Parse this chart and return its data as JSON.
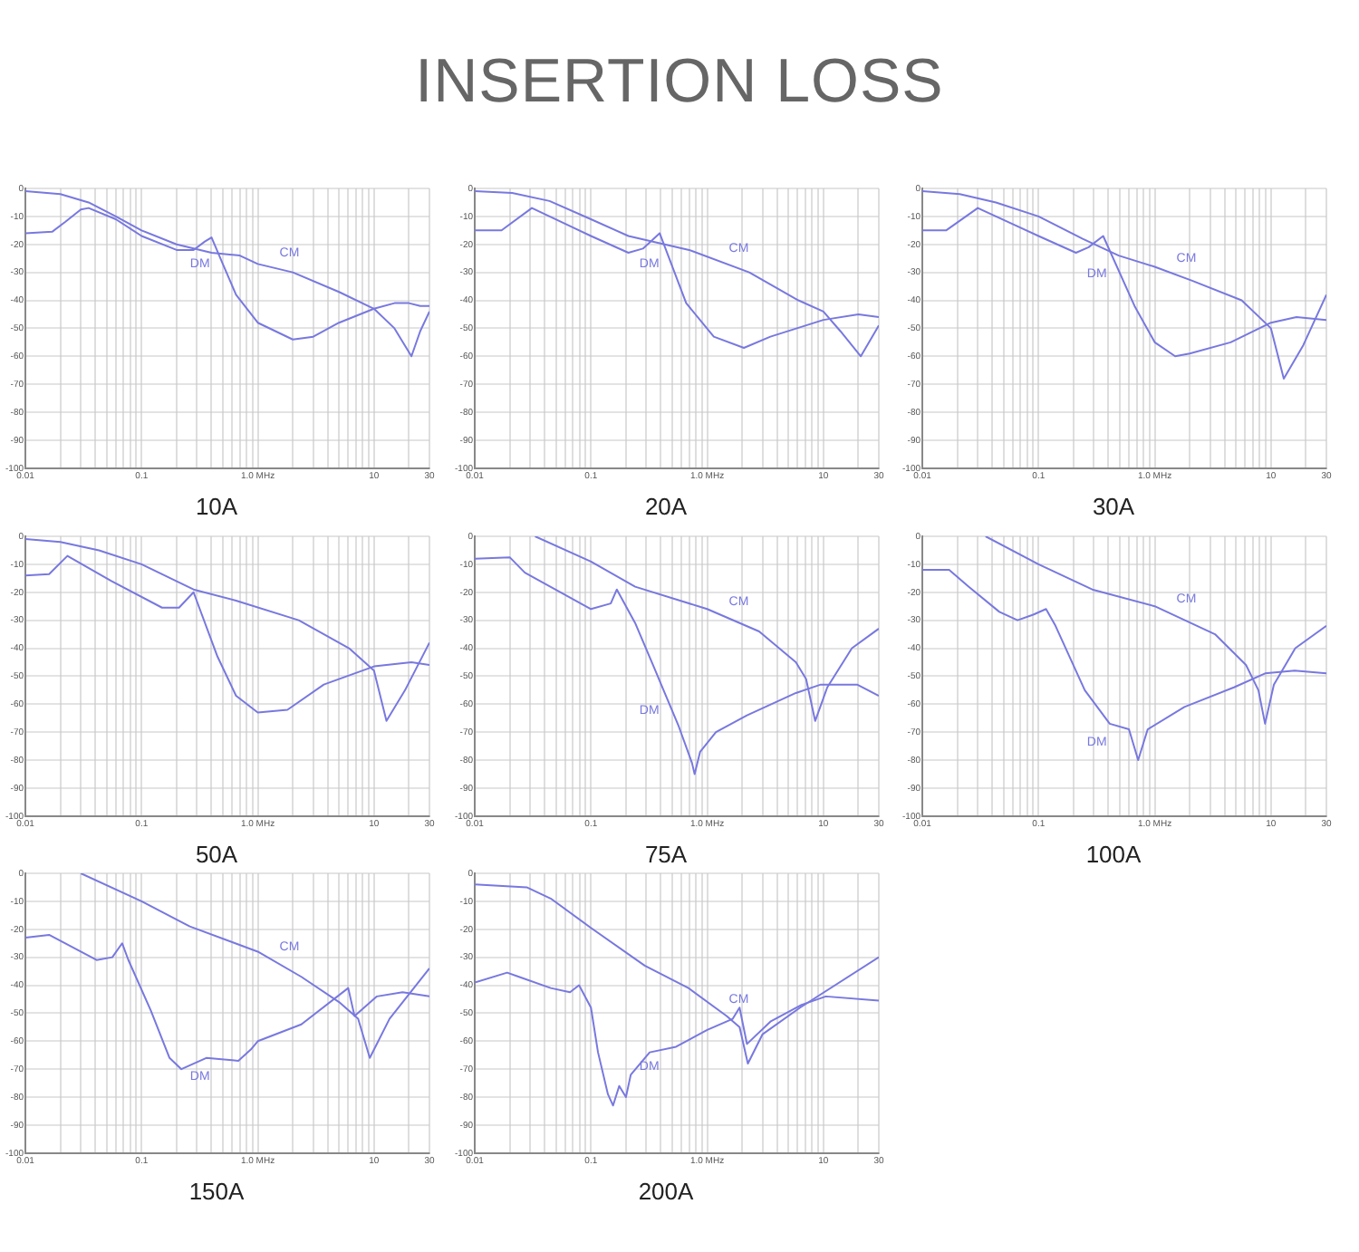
{
  "chart_data": [
    {
      "type": "line",
      "title": "10A",
      "annotations": [
        "INSERTION LOSS"
      ],
      "log": "x",
      "grid": true,
      "xlim": [
        0.01,
        30
      ],
      "ylim": [
        -100,
        0
      ],
      "xticks": [
        0.01,
        {
          "value": 0.02,
          "label": null
        },
        {
          "value": 0.03,
          "label": null
        },
        {
          "value": 0.04,
          "label": null
        },
        {
          "value": 0.05,
          "label": null
        },
        {
          "value": 0.06,
          "label": null
        },
        {
          "value": 0.07,
          "label": null
        },
        {
          "value": 0.08,
          "label": null
        },
        {
          "value": 0.09,
          "label": null
        },
        0.1,
        {
          "value": 0.2,
          "label": null
        },
        {
          "value": 0.3,
          "label": null
        },
        {
          "value": 0.4,
          "label": null
        },
        {
          "value": 0.5,
          "label": null
        },
        {
          "value": 0.6,
          "label": null
        },
        {
          "value": 0.7,
          "label": null
        },
        {
          "value": 0.8,
          "label": null
        },
        {
          "value": 0.9,
          "label": null
        },
        {
          "value": 1,
          "label": "1.0 MHz"
        },
        {
          "value": 2,
          "label": null
        },
        {
          "value": 3,
          "label": null
        },
        {
          "value": 4,
          "label": null
        },
        {
          "value": 5,
          "label": null
        },
        {
          "value": 6,
          "label": null
        },
        {
          "value": 7,
          "label": null
        },
        {
          "value": 8,
          "label": null
        },
        {
          "value": 9,
          "label": null
        },
        10,
        {
          "value": 20,
          "label": null
        },
        30
      ],
      "yticks": [
        -100,
        -90,
        -80,
        -70,
        -60,
        -50,
        -40,
        -30,
        -20,
        -10,
        0
      ],
      "series": [
        {
          "name": "CM",
          "color": "#7878e0",
          "x": [
            0.01,
            0.02,
            0.035,
            0.06,
            0.1,
            0.2,
            0.4,
            0.7,
            1,
            2,
            5,
            10,
            15,
            21,
            25,
            30
          ],
          "values": [
            -1,
            -2,
            -5,
            -10,
            -15,
            -20,
            -23,
            -24,
            -27,
            -30,
            -37,
            -43,
            -50,
            -60,
            -51,
            -44
          ]
        },
        {
          "name": "DM",
          "color": "#7878e0",
          "x": [
            0.01,
            0.017,
            0.022,
            0.03,
            0.035,
            0.06,
            0.1,
            0.2,
            0.28,
            0.35,
            0.4,
            0.5,
            0.65,
            1,
            2,
            3,
            5,
            10,
            15,
            20,
            25,
            30
          ],
          "values": [
            -16,
            -15.5,
            -12,
            -7.5,
            -7,
            -11,
            -17,
            -22,
            -22,
            -19,
            -17.5,
            -27,
            -38,
            -48,
            -54,
            -53,
            -48,
            -43,
            -41,
            -41,
            -42,
            -42
          ]
        }
      ]
    },
    {
      "type": "line",
      "title": "20A",
      "log": "x",
      "grid": true,
      "xlim": [
        0.01,
        30
      ],
      "ylim": [
        -100,
        0
      ],
      "xticks": [
        0.01,
        {
          "value": 0.02,
          "label": null
        },
        {
          "value": 0.03,
          "label": null
        },
        {
          "value": 0.04,
          "label": null
        },
        {
          "value": 0.05,
          "label": null
        },
        {
          "value": 0.06,
          "label": null
        },
        {
          "value": 0.07,
          "label": null
        },
        {
          "value": 0.08,
          "label": null
        },
        {
          "value": 0.09,
          "label": null
        },
        0.1,
        {
          "value": 0.2,
          "label": null
        },
        {
          "value": 0.3,
          "label": null
        },
        {
          "value": 0.4,
          "label": null
        },
        {
          "value": 0.5,
          "label": null
        },
        {
          "value": 0.6,
          "label": null
        },
        {
          "value": 0.7,
          "label": null
        },
        {
          "value": 0.8,
          "label": null
        },
        {
          "value": 0.9,
          "label": null
        },
        {
          "value": 1,
          "label": "1.0 MHz"
        },
        {
          "value": 2,
          "label": null
        },
        {
          "value": 3,
          "label": null
        },
        {
          "value": 4,
          "label": null
        },
        {
          "value": 5,
          "label": null
        },
        {
          "value": 6,
          "label": null
        },
        {
          "value": 7,
          "label": null
        },
        {
          "value": 8,
          "label": null
        },
        {
          "value": 9,
          "label": null
        },
        10,
        {
          "value": 20,
          "label": null
        },
        30
      ],
      "yticks": [
        -100,
        -90,
        -80,
        -70,
        -60,
        -50,
        -40,
        -30,
        -20,
        -10,
        0
      ],
      "series": [
        {
          "name": "CM",
          "color": "#7878e0",
          "x": [
            0.01,
            0.021,
            0.044,
            0.1,
            0.21,
            0.43,
            0.7,
            2.3,
            6.1,
            10,
            14,
            21,
            30
          ],
          "values": [
            -1,
            -1.6,
            -4.5,
            -11,
            -17,
            -20,
            -22,
            -30,
            -40,
            -44,
            -51,
            -60,
            -49
          ]
        },
        {
          "name": "DM",
          "color": "#7878e0",
          "x": [
            0.01,
            0.017,
            0.031,
            0.1,
            0.21,
            0.28,
            0.39,
            0.66,
            1.14,
            2.07,
            3.5,
            10,
            20,
            30
          ],
          "values": [
            -15,
            -15,
            -7,
            -17,
            -23,
            -21.5,
            -16,
            -41,
            -53,
            -57,
            -53,
            -47,
            -45,
            -46
          ]
        }
      ]
    },
    {
      "type": "line",
      "title": "30A",
      "log": "x",
      "grid": true,
      "xlim": [
        0.01,
        30
      ],
      "ylim": [
        -100,
        0
      ],
      "xticks": [
        0.01,
        {
          "value": 0.02,
          "label": null
        },
        {
          "value": 0.03,
          "label": null
        },
        {
          "value": 0.04,
          "label": null
        },
        {
          "value": 0.05,
          "label": null
        },
        {
          "value": 0.06,
          "label": null
        },
        {
          "value": 0.07,
          "label": null
        },
        {
          "value": 0.08,
          "label": null
        },
        {
          "value": 0.09,
          "label": null
        },
        0.1,
        {
          "value": 0.2,
          "label": null
        },
        {
          "value": 0.3,
          "label": null
        },
        {
          "value": 0.4,
          "label": null
        },
        {
          "value": 0.5,
          "label": null
        },
        {
          "value": 0.6,
          "label": null
        },
        {
          "value": 0.7,
          "label": null
        },
        {
          "value": 0.8,
          "label": null
        },
        {
          "value": 0.9,
          "label": null
        },
        {
          "value": 1,
          "label": "1.0 MHz"
        },
        {
          "value": 2,
          "label": null
        },
        {
          "value": 3,
          "label": null
        },
        {
          "value": 4,
          "label": null
        },
        {
          "value": 5,
          "label": null
        },
        {
          "value": 6,
          "label": null
        },
        {
          "value": 7,
          "label": null
        },
        {
          "value": 8,
          "label": null
        },
        {
          "value": 9,
          "label": null
        },
        10,
        {
          "value": 20,
          "label": null
        },
        30
      ],
      "yticks": [
        -100,
        -90,
        -80,
        -70,
        -60,
        -50,
        -40,
        -30,
        -20,
        -10,
        0
      ],
      "series": [
        {
          "name": "CM",
          "color": "#7878e0",
          "x": [
            0.01,
            0.021,
            0.043,
            0.1,
            0.24,
            0.49,
            1,
            2.1,
            5.6,
            10,
            12.9,
            19,
            30
          ],
          "values": [
            -1,
            -2,
            -5,
            -10,
            -18,
            -24,
            -28,
            -33,
            -40,
            -50,
            -68,
            -56,
            -38
          ]
        },
        {
          "name": "DM",
          "color": "#7878e0",
          "x": [
            0.01,
            0.016,
            0.03,
            0.1,
            0.21,
            0.27,
            0.36,
            0.67,
            1,
            1.5,
            2,
            4.5,
            10,
            16.6,
            30
          ],
          "values": [
            -15,
            -15,
            -7,
            -17,
            -23,
            -21,
            -17,
            -42,
            -55,
            -60,
            -59,
            -55,
            -48,
            -46,
            -47
          ]
        }
      ]
    },
    {
      "type": "line",
      "title": "50A",
      "log": "x",
      "grid": true,
      "xlim": [
        0.01,
        30
      ],
      "ylim": [
        -100,
        0
      ],
      "xticks": [
        0.01,
        {
          "value": 0.02,
          "label": null
        },
        {
          "value": 0.03,
          "label": null
        },
        {
          "value": 0.04,
          "label": null
        },
        {
          "value": 0.05,
          "label": null
        },
        {
          "value": 0.06,
          "label": null
        },
        {
          "value": 0.07,
          "label": null
        },
        {
          "value": 0.08,
          "label": null
        },
        {
          "value": 0.09,
          "label": null
        },
        0.1,
        {
          "value": 0.2,
          "label": null
        },
        {
          "value": 0.3,
          "label": null
        },
        {
          "value": 0.4,
          "label": null
        },
        {
          "value": 0.5,
          "label": null
        },
        {
          "value": 0.6,
          "label": null
        },
        {
          "value": 0.7,
          "label": null
        },
        {
          "value": 0.8,
          "label": null
        },
        {
          "value": 0.9,
          "label": null
        },
        {
          "value": 1,
          "label": "1.0 MHz"
        },
        {
          "value": 2,
          "label": null
        },
        {
          "value": 3,
          "label": null
        },
        {
          "value": 4,
          "label": null
        },
        {
          "value": 5,
          "label": null
        },
        {
          "value": 6,
          "label": null
        },
        {
          "value": 7,
          "label": null
        },
        {
          "value": 8,
          "label": null
        },
        {
          "value": 9,
          "label": null
        },
        10,
        {
          "value": 20,
          "label": null
        },
        30
      ],
      "yticks": [
        -100,
        -90,
        -80,
        -70,
        -60,
        -50,
        -40,
        -30,
        -20,
        -10,
        0
      ],
      "series": [
        {
          "color": "#7878e0",
          "x": [
            0.01,
            0.02,
            0.043,
            0.1,
            0.28,
            0.65,
            2.25,
            6.1,
            10,
            12.8,
            18.5,
            30
          ],
          "values": [
            -1,
            -2,
            -5,
            -10,
            -19,
            -23,
            -30,
            -40,
            -48,
            -66,
            -55,
            -38
          ]
        },
        {
          "color": "#7878e0",
          "x": [
            0.01,
            0.016,
            0.023,
            0.055,
            0.15,
            0.21,
            0.28,
            0.45,
            0.65,
            1,
            1.8,
            3.7,
            10,
            21,
            30
          ],
          "values": [
            -14,
            -13.5,
            -7,
            -16,
            -25.5,
            -25.5,
            -20,
            -43,
            -57,
            -63,
            -62,
            -53,
            -46.5,
            -45,
            -46
          ]
        }
      ]
    },
    {
      "type": "line",
      "title": "75A",
      "log": "x",
      "grid": true,
      "xlim": [
        0.01,
        30
      ],
      "ylim": [
        -100,
        0
      ],
      "xticks": [
        0.01,
        {
          "value": 0.02,
          "label": null
        },
        {
          "value": 0.03,
          "label": null
        },
        {
          "value": 0.04,
          "label": null
        },
        {
          "value": 0.05,
          "label": null
        },
        {
          "value": 0.06,
          "label": null
        },
        {
          "value": 0.07,
          "label": null
        },
        {
          "value": 0.08,
          "label": null
        },
        {
          "value": 0.09,
          "label": null
        },
        0.1,
        {
          "value": 0.2,
          "label": null
        },
        {
          "value": 0.3,
          "label": null
        },
        {
          "value": 0.4,
          "label": null
        },
        {
          "value": 0.5,
          "label": null
        },
        {
          "value": 0.6,
          "label": null
        },
        {
          "value": 0.7,
          "label": null
        },
        {
          "value": 0.8,
          "label": null
        },
        {
          "value": 0.9,
          "label": null
        },
        {
          "value": 1,
          "label": "1.0 MHz"
        },
        {
          "value": 2,
          "label": null
        },
        {
          "value": 3,
          "label": null
        },
        {
          "value": 4,
          "label": null
        },
        {
          "value": 5,
          "label": null
        },
        {
          "value": 6,
          "label": null
        },
        {
          "value": 7,
          "label": null
        },
        {
          "value": 8,
          "label": null
        },
        {
          "value": 9,
          "label": null
        },
        10,
        {
          "value": 20,
          "label": null
        },
        30
      ],
      "yticks": [
        -100,
        -90,
        -80,
        -70,
        -60,
        -50,
        -40,
        -30,
        -20,
        -10,
        0
      ],
      "series": [
        {
          "name": "CM",
          "color": "#7878e0",
          "x": [
            0.033,
            0.1,
            0.24,
            1,
            2.8,
            5.8,
            7.1,
            8.5,
            10.8,
            17.6,
            30
          ],
          "values": [
            0,
            -9,
            -18,
            -26,
            -34,
            -45,
            -51,
            -66,
            -54,
            -40,
            -33
          ]
        },
        {
          "name": "DM",
          "color": "#7878e0",
          "x": [
            0.01,
            0.02,
            0.027,
            0.1,
            0.148,
            0.167,
            0.24,
            0.35,
            0.57,
            0.74,
            0.78,
            0.87,
            1.19,
            2.2,
            5.8,
            9.5,
            19.5,
            30
          ],
          "values": [
            -8,
            -7.5,
            -13,
            -26,
            -24,
            -19,
            -31,
            -47,
            -68,
            -81,
            -85,
            -77,
            -70,
            -64,
            -56,
            -53,
            -53,
            -57
          ]
        }
      ]
    },
    {
      "type": "line",
      "title": "100A",
      "log": "x",
      "grid": true,
      "xlim": [
        0.01,
        30
      ],
      "ylim": [
        -100,
        0
      ],
      "xticks": [
        0.01,
        {
          "value": 0.02,
          "label": null
        },
        {
          "value": 0.03,
          "label": null
        },
        {
          "value": 0.04,
          "label": null
        },
        {
          "value": 0.05,
          "label": null
        },
        {
          "value": 0.06,
          "label": null
        },
        {
          "value": 0.07,
          "label": null
        },
        {
          "value": 0.08,
          "label": null
        },
        {
          "value": 0.09,
          "label": null
        },
        0.1,
        {
          "value": 0.2,
          "label": null
        },
        {
          "value": 0.3,
          "label": null
        },
        {
          "value": 0.4,
          "label": null
        },
        {
          "value": 0.5,
          "label": null
        },
        {
          "value": 0.6,
          "label": null
        },
        {
          "value": 0.7,
          "label": null
        },
        {
          "value": 0.8,
          "label": null
        },
        {
          "value": 0.9,
          "label": null
        },
        {
          "value": 1,
          "label": "1.0 MHz"
        },
        {
          "value": 2,
          "label": null
        },
        {
          "value": 3,
          "label": null
        },
        {
          "value": 4,
          "label": null
        },
        {
          "value": 5,
          "label": null
        },
        {
          "value": 6,
          "label": null
        },
        {
          "value": 7,
          "label": null
        },
        {
          "value": 8,
          "label": null
        },
        {
          "value": 9,
          "label": null
        },
        10,
        {
          "value": 20,
          "label": null
        },
        30
      ],
      "yticks": [
        -100,
        -90,
        -80,
        -70,
        -60,
        -50,
        -40,
        -30,
        -20,
        -10,
        0
      ],
      "series": [
        {
          "name": "CM",
          "color": "#7878e0",
          "x": [
            0.035,
            0.1,
            0.29,
            1,
            3.3,
            6.1,
            7.8,
            8.9,
            10.6,
            16.2,
            30
          ],
          "values": [
            0,
            -10,
            -19,
            -25,
            -35,
            -46,
            -55,
            -67,
            -53,
            -40,
            -32
          ]
        },
        {
          "name": "DM",
          "color": "#7878e0",
          "x": [
            0.01,
            0.017,
            0.025,
            0.046,
            0.066,
            0.09,
            0.116,
            0.14,
            0.25,
            0.41,
            0.6,
            0.72,
            0.87,
            1.8,
            4.8,
            8.9,
            16,
            30
          ],
          "values": [
            -12,
            -12,
            -18,
            -27,
            -30,
            -28,
            -26,
            -32,
            -55,
            -67,
            -69,
            -80,
            -69,
            -61,
            -54,
            -49,
            -48,
            -49
          ]
        }
      ]
    },
    {
      "type": "line",
      "title": "150A",
      "log": "x",
      "grid": true,
      "xlim": [
        0.01,
        30
      ],
      "ylim": [
        -100,
        0
      ],
      "xticks": [
        0.01,
        {
          "value": 0.02,
          "label": null
        },
        {
          "value": 0.03,
          "label": null
        },
        {
          "value": 0.04,
          "label": null
        },
        {
          "value": 0.05,
          "label": null
        },
        {
          "value": 0.06,
          "label": null
        },
        {
          "value": 0.07,
          "label": null
        },
        {
          "value": 0.08,
          "label": null
        },
        {
          "value": 0.09,
          "label": null
        },
        0.1,
        {
          "value": 0.2,
          "label": null
        },
        {
          "value": 0.3,
          "label": null
        },
        {
          "value": 0.4,
          "label": null
        },
        {
          "value": 0.5,
          "label": null
        },
        {
          "value": 0.6,
          "label": null
        },
        {
          "value": 0.7,
          "label": null
        },
        {
          "value": 0.8,
          "label": null
        },
        {
          "value": 0.9,
          "label": null
        },
        {
          "value": 1,
          "label": "1.0 MHz"
        },
        {
          "value": 2,
          "label": null
        },
        {
          "value": 3,
          "label": null
        },
        {
          "value": 4,
          "label": null
        },
        {
          "value": 5,
          "label": null
        },
        {
          "value": 6,
          "label": null
        },
        {
          "value": 7,
          "label": null
        },
        {
          "value": 8,
          "label": null
        },
        {
          "value": 9,
          "label": null
        },
        10,
        {
          "value": 20,
          "label": null
        },
        30
      ],
      "yticks": [
        -100,
        -90,
        -80,
        -70,
        -60,
        -50,
        -40,
        -30,
        -20,
        -10,
        0
      ],
      "series": [
        {
          "name": "CM",
          "color": "#7878e0",
          "x": [
            0.03,
            0.1,
            0.26,
            1,
            2.37,
            5,
            7.3,
            9.2,
            13.6,
            30
          ],
          "values": [
            0,
            -10,
            -19,
            -28,
            -37,
            -46,
            -52,
            -66,
            -52,
            -34
          ]
        },
        {
          "name": "DM",
          "color": "#7878e0",
          "x": [
            0.01,
            0.016,
            0.041,
            0.056,
            0.068,
            0.077,
            0.12,
            0.174,
            0.22,
            0.36,
            0.68,
            0.87,
            1,
            2.37,
            6,
            6.8,
            10.6,
            17.6,
            30
          ],
          "values": [
            -23,
            -22,
            -31,
            -30,
            -25,
            -31,
            -49,
            -66,
            -70,
            -66,
            -67,
            -63,
            -60,
            -54,
            -41,
            -51,
            -44,
            -42.5,
            -44
          ]
        }
      ]
    },
    {
      "type": "line",
      "title": "200A",
      "log": "x",
      "grid": true,
      "xlim": [
        0.01,
        30
      ],
      "ylim": [
        -100,
        0
      ],
      "xticks": [
        0.01,
        {
          "value": 0.02,
          "label": null
        },
        {
          "value": 0.03,
          "label": null
        },
        {
          "value": 0.04,
          "label": null
        },
        {
          "value": 0.05,
          "label": null
        },
        {
          "value": 0.06,
          "label": null
        },
        {
          "value": 0.07,
          "label": null
        },
        {
          "value": 0.08,
          "label": null
        },
        {
          "value": 0.09,
          "label": null
        },
        0.1,
        {
          "value": 0.2,
          "label": null
        },
        {
          "value": 0.3,
          "label": null
        },
        {
          "value": 0.4,
          "label": null
        },
        {
          "value": 0.5,
          "label": null
        },
        {
          "value": 0.6,
          "label": null
        },
        {
          "value": 0.7,
          "label": null
        },
        {
          "value": 0.8,
          "label": null
        },
        {
          "value": 0.9,
          "label": null
        },
        {
          "value": 1,
          "label": "1.0 MHz"
        },
        {
          "value": 2,
          "label": null
        },
        {
          "value": 3,
          "label": null
        },
        {
          "value": 4,
          "label": null
        },
        {
          "value": 5,
          "label": null
        },
        {
          "value": 6,
          "label": null
        },
        {
          "value": 7,
          "label": null
        },
        {
          "value": 8,
          "label": null
        },
        {
          "value": 9,
          "label": null
        },
        10,
        {
          "value": 20,
          "label": null
        },
        30
      ],
      "yticks": [
        -100,
        -90,
        -80,
        -70,
        -60,
        -50,
        -40,
        -30,
        -20,
        -10,
        0
      ],
      "series": [
        {
          "name": "CM",
          "color": "#7878e0",
          "x": [
            0.01,
            0.028,
            0.045,
            0.1,
            0.29,
            0.69,
            1.47,
            1.9,
            2.24,
            3,
            6.3,
            30
          ],
          "values": [
            -4,
            -5,
            -9,
            -19.5,
            -33,
            -41,
            -51,
            -55,
            -68,
            -57.5,
            -48,
            -30
          ]
        },
        {
          "name": "DM",
          "color": "#7878e0",
          "x": [
            0.01,
            0.019,
            0.024,
            0.045,
            0.066,
            0.079,
            0.1,
            0.115,
            0.14,
            0.155,
            0.175,
            0.2,
            0.22,
            0.32,
            0.54,
            1,
            1.66,
            1.9,
            2.2,
            3.5,
            6.5,
            10.5,
            30
          ],
          "values": [
            -39,
            -35.5,
            -37,
            -41,
            -42.5,
            -40,
            -48,
            -64,
            -79,
            -83,
            -76,
            -80,
            -72,
            -64,
            -62,
            -56,
            -52,
            -48,
            -61,
            -53,
            -47,
            -44,
            -45.5
          ]
        }
      ]
    }
  ]
}
